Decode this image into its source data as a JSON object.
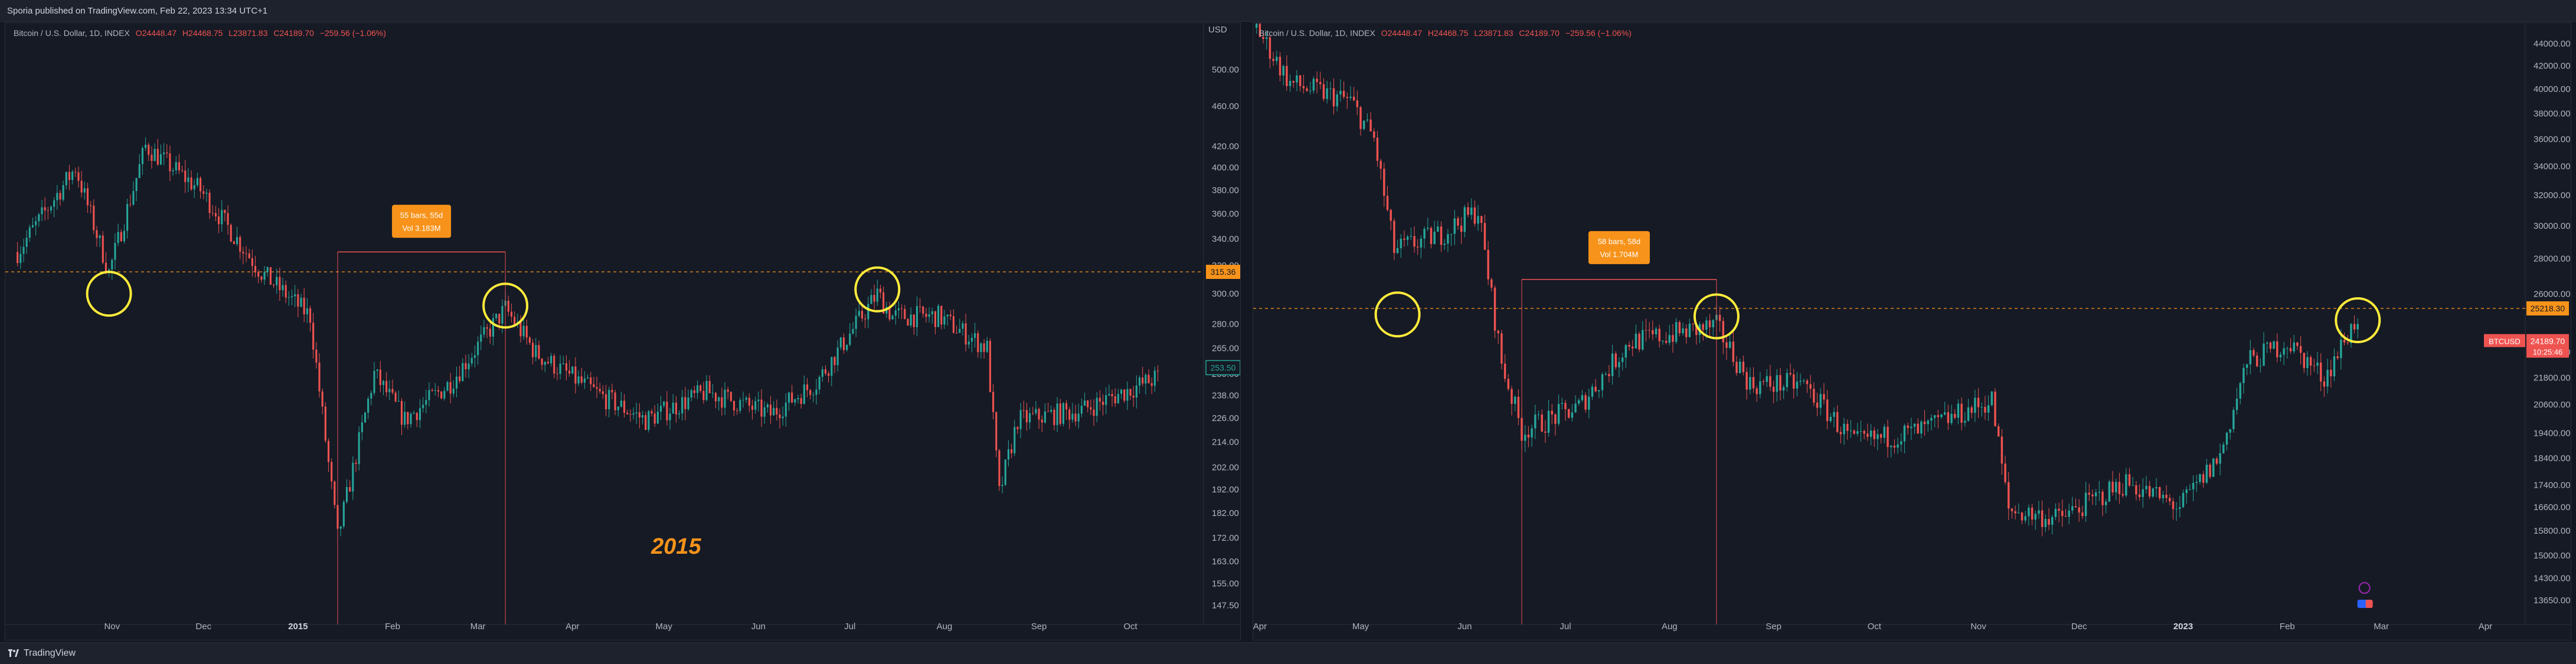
{
  "header": {
    "publisher": "Sporia published on TradingView.com, Feb 22, 2023 13:34 UTC+1"
  },
  "footer": {
    "brand": "TradingView"
  },
  "charts": [
    {
      "id": "left",
      "legend": {
        "symbol": "Bitcoin / U.S. Dollar, 1D, INDEX",
        "o": "O24448.47",
        "h": "H24468.75",
        "l": "L23871.83",
        "c": "C24189.70",
        "chg": "−259.56 (−1.06%)"
      },
      "currency_label": "USD",
      "price_badge": "315.36",
      "last_badge": "253.50",
      "measure": {
        "line1": "55 bars, 55d",
        "line2": "Vol 3.183M"
      },
      "annotation": "2015",
      "colors": {
        "up": "#26a69a",
        "down": "#ef5350",
        "highlight": "#ffeb3b",
        "measure": "#f7931a"
      }
    },
    {
      "id": "right",
      "legend": {
        "symbol": "Bitcoin / U.S. Dollar, 1D, INDEX",
        "o": "O24448.47",
        "h": "H24468.75",
        "l": "L23871.83",
        "c": "C24189.70",
        "chg": "−259.56 (−1.06%)"
      },
      "price_badge": "25218.30",
      "btc_badge": {
        "symbol": "BTCUSD",
        "price": "24189.70",
        "time": "10:25:46"
      },
      "measure": {
        "line1": "58 bars, 58d",
        "line2": "Vol 1.704M"
      },
      "colors": {
        "up": "#26a69a",
        "down": "#ef5350",
        "highlight": "#ffeb3b",
        "measure": "#f7931a"
      }
    }
  ],
  "chart_data": [
    {
      "type": "candlestick",
      "y_ticks": [
        500.0,
        460.0,
        420.0,
        400.0,
        380.0,
        360.0,
        340.0,
        320.0,
        300.0,
        280.0,
        265.0,
        250.0,
        238.0,
        226.0,
        214.0,
        202.0,
        192.0,
        182.0,
        172.0,
        163.0,
        155.0,
        147.5
      ],
      "y_ticks_label": [
        "500.00",
        "460.00",
        "420.00",
        "400.00",
        "380.00",
        "360.00",
        "340.00",
        "320.00",
        "300.00",
        "280.00",
        "265.00",
        "250.00",
        "238.00",
        "226.00",
        "214.00",
        "202.00",
        "192.00",
        "182.00",
        "172.00",
        "163.00",
        "155.00",
        "147.50"
      ],
      "x_labels": [
        "Nov",
        "Dec",
        "2015",
        "Feb",
        "Mar",
        "Apr",
        "May",
        "Jun",
        "Jul",
        "Aug",
        "Sep",
        "Oct"
      ],
      "year_labels": [
        "2015"
      ],
      "ylim": [
        145,
        520
      ],
      "log_scale": true,
      "key_points": [
        {
          "date": "2014-10-01",
          "price": 330
        },
        {
          "date": "2014-10-20",
          "price": 400
        },
        {
          "date": "2014-10-31",
          "price": 315
        },
        {
          "date": "2014-11-12",
          "price": 420
        },
        {
          "date": "2014-11-30",
          "price": 380
        },
        {
          "date": "2014-12-20",
          "price": 315
        },
        {
          "date": "2015-01-05",
          "price": 285
        },
        {
          "date": "2015-01-14",
          "price": 172
        },
        {
          "date": "2015-01-26",
          "price": 250
        },
        {
          "date": "2015-02-05",
          "price": 225
        },
        {
          "date": "2015-02-20",
          "price": 245
        },
        {
          "date": "2015-03-10",
          "price": 290
        },
        {
          "date": "2015-03-20",
          "price": 262
        },
        {
          "date": "2015-04-10",
          "price": 238
        },
        {
          "date": "2015-04-25",
          "price": 225
        },
        {
          "date": "2015-05-15",
          "price": 240
        },
        {
          "date": "2015-06-05",
          "price": 228
        },
        {
          "date": "2015-06-20",
          "price": 245
        },
        {
          "date": "2015-07-10",
          "price": 300
        },
        {
          "date": "2015-07-15",
          "price": 285
        },
        {
          "date": "2015-07-30",
          "price": 285
        },
        {
          "date": "2015-08-15",
          "price": 265
        },
        {
          "date": "2015-08-19",
          "price": 190
        },
        {
          "date": "2015-08-25",
          "price": 225
        },
        {
          "date": "2015-09-15",
          "price": 230
        },
        {
          "date": "2015-10-10",
          "price": 248
        }
      ],
      "hline": 315.36
    },
    {
      "type": "candlestick",
      "y_ticks": [
        44000,
        42000,
        40000,
        38000,
        36000,
        34000,
        32000,
        30000,
        28000,
        26000,
        25218.3,
        23000,
        21800,
        20600,
        19400,
        18400,
        17400,
        16600,
        15800,
        15000,
        14300,
        13650
      ],
      "y_ticks_label": [
        "44000.00",
        "42000.00",
        "40000.00",
        "38000.00",
        "36000.00",
        "34000.00",
        "32000.00",
        "30000.00",
        "28000.00",
        "26000.00",
        "",
        "23000.00",
        "21800.00",
        "20600.00",
        "19400.00",
        "18400.00",
        "17400.00",
        "16600.00",
        "15800.00",
        "15000.00",
        "14300.00",
        "13650.00"
      ],
      "x_labels": [
        "Apr",
        "May",
        "Jun",
        "Jul",
        "Aug",
        "Sep",
        "Oct",
        "Nov",
        "Dec",
        "2023",
        "Feb",
        "Mar",
        "Apr"
      ],
      "year_labels": [
        "2023"
      ],
      "ylim": [
        13300,
        45500
      ],
      "log_scale": true,
      "key_points": [
        {
          "date": "2022-03-31",
          "price": 45500
        },
        {
          "date": "2022-04-10",
          "price": 40500
        },
        {
          "date": "2022-04-28",
          "price": 39000
        },
        {
          "date": "2022-05-05",
          "price": 36000
        },
        {
          "date": "2022-05-11",
          "price": 28500
        },
        {
          "date": "2022-05-25",
          "price": 29500
        },
        {
          "date": "2022-06-05",
          "price": 31000
        },
        {
          "date": "2022-06-12",
          "price": 22500
        },
        {
          "date": "2022-06-18",
          "price": 19500
        },
        {
          "date": "2022-07-05",
          "price": 20500
        },
        {
          "date": "2022-07-20",
          "price": 23500
        },
        {
          "date": "2022-08-15",
          "price": 24300
        },
        {
          "date": "2022-08-25",
          "price": 21500
        },
        {
          "date": "2022-09-10",
          "price": 21500
        },
        {
          "date": "2022-09-25",
          "price": 19000
        },
        {
          "date": "2022-10-15",
          "price": 19500
        },
        {
          "date": "2022-11-05",
          "price": 20800
        },
        {
          "date": "2022-11-10",
          "price": 16500
        },
        {
          "date": "2022-11-25",
          "price": 16200
        },
        {
          "date": "2022-12-15",
          "price": 17500
        },
        {
          "date": "2022-12-31",
          "price": 16600
        },
        {
          "date": "2023-01-12",
          "price": 18500
        },
        {
          "date": "2023-01-20",
          "price": 22500
        },
        {
          "date": "2023-02-01",
          "price": 23500
        },
        {
          "date": "2023-02-12",
          "price": 21800
        },
        {
          "date": "2023-02-22",
          "price": 24800
        }
      ],
      "hline": 25218.3
    }
  ]
}
